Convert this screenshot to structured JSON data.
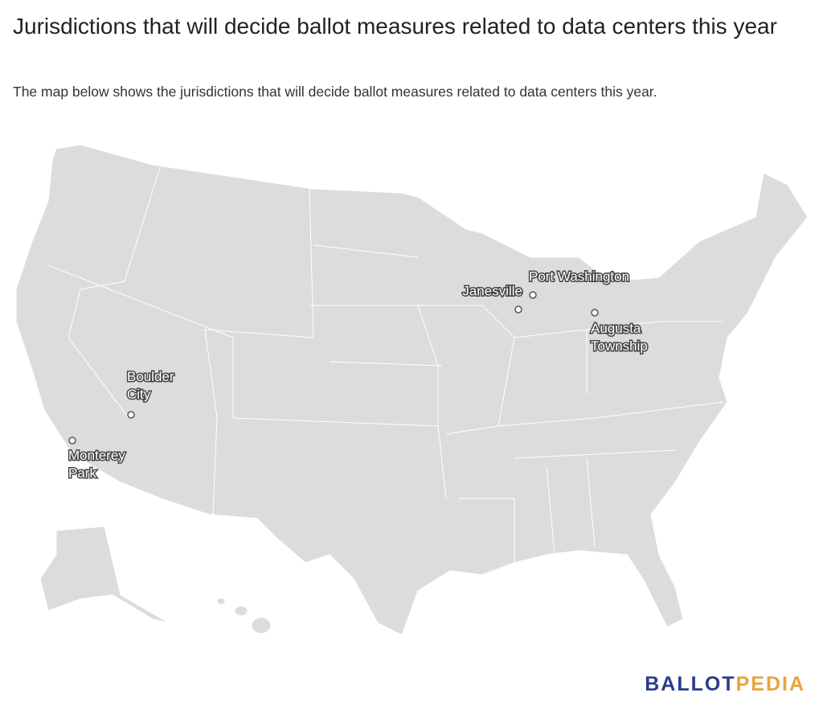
{
  "header": {
    "title": "Jurisdictions that will decide ballot measures related to data centers this year",
    "subtitle": "The map below shows the jurisdictions that will decide ballot measures related to data centers this year."
  },
  "map": {
    "points": [
      {
        "label": "Port Washington"
      },
      {
        "label": "Janesville"
      },
      {
        "label": "Augusta Township"
      },
      {
        "label": "Boulder City"
      },
      {
        "label": "Monterey Park"
      }
    ]
  },
  "logo": {
    "part1": "BALLOT",
    "part2": "PEDIA"
  }
}
